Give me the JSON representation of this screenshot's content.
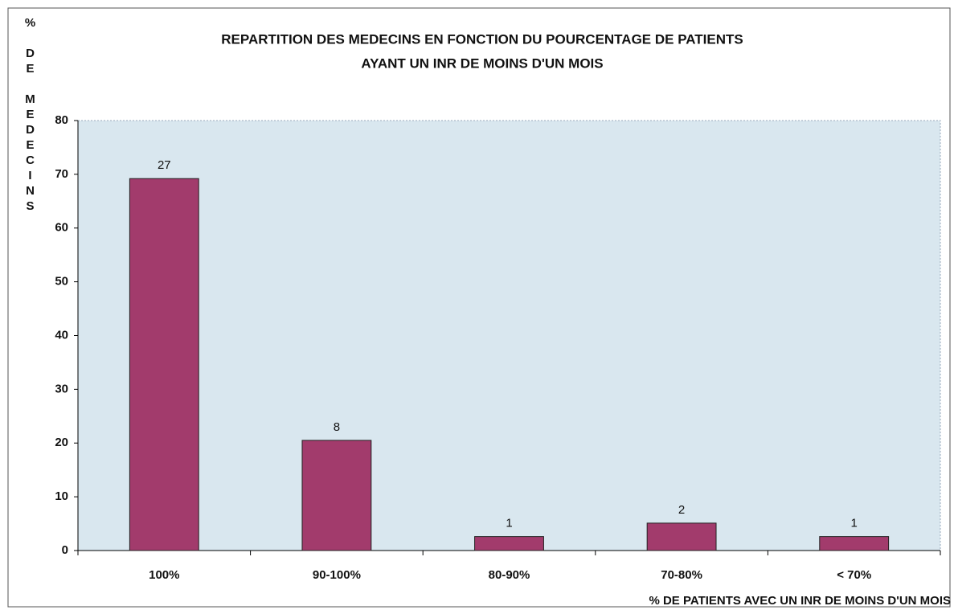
{
  "chart_data": {
    "type": "bar",
    "title": [
      "REPARTITION DES MEDECINS EN FONCTION DU POURCENTAGE DE PATIENTS",
      "AYANT UN INR DE MOINS D'UN MOIS"
    ],
    "y_label": "% DE MEDECINS",
    "x_label": "% DE PATIENTS AVEC UN INR DE MOINS D'UN MOIS",
    "categories": [
      "100%",
      "90-100%",
      "80-90%",
      "70-80%",
      "< 70%"
    ],
    "values": [
      69.2,
      20.5,
      2.6,
      5.1,
      2.6
    ],
    "counts": [
      27,
      8,
      1,
      2,
      1
    ],
    "color": "#a23b6c",
    "ylim": [
      0,
      80
    ],
    "yticks": [
      0,
      10,
      20,
      30,
      40,
      50,
      60,
      70,
      80
    ],
    "grid": false
  }
}
